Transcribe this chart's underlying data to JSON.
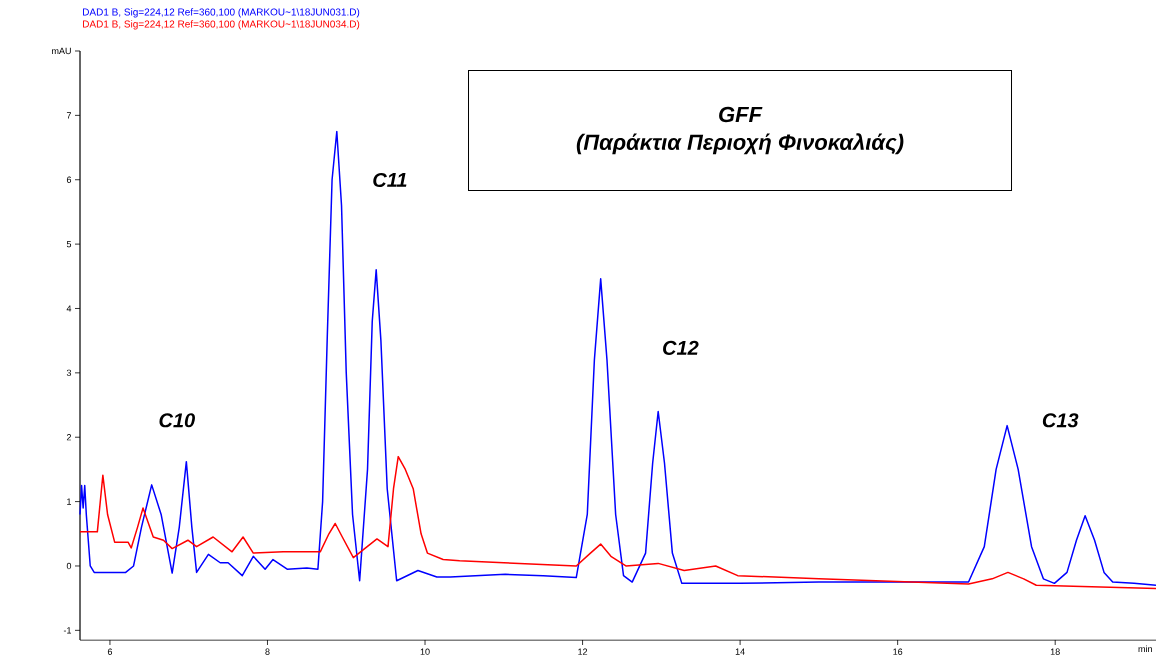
{
  "chart_data": {
    "type": "line",
    "title": "GFF",
    "subtitle": "(Παράκτια Περιοχή Φινοκαλιάς)",
    "xlabel": "min",
    "legend": "top left",
    "xlim": [
      5.62,
      19.28
    ],
    "ylim": [
      -1.15,
      8
    ],
    "xticks": [
      6,
      8,
      10,
      12,
      14,
      16,
      18
    ],
    "yticks": [
      -1,
      0,
      1,
      2,
      3,
      4,
      5,
      6,
      7,
      {
        "value": 8,
        "label": "mAU"
      }
    ],
    "annotations": [
      "C10",
      "C11",
      "C12",
      "C13"
    ],
    "series": [
      {
        "name": "DAD1 B, Sig=224,12 Ref=360,100 (MARKOU~1\\18JUN031.D)",
        "color": "#0000ff",
        "x": [
          5.62,
          5.64,
          5.66,
          5.68,
          5.7,
          5.75,
          5.8,
          6.0,
          6.2,
          6.3,
          6.4,
          6.53,
          6.65,
          6.79,
          6.88,
          6.97,
          7.04,
          7.1,
          7.25,
          7.4,
          7.5,
          7.68,
          7.82,
          7.97,
          8.07,
          8.25,
          8.5,
          8.64,
          8.7,
          8.76,
          8.82,
          8.88,
          8.94,
          9.0,
          9.08,
          9.17,
          9.27,
          9.33,
          9.38,
          9.44,
          9.52,
          9.64,
          9.91,
          10.15,
          10.32,
          11.02,
          11.5,
          11.92,
          12.06,
          12.15,
          12.23,
          12.31,
          12.42,
          12.52,
          12.63,
          12.8,
          12.89,
          12.96,
          13.04,
          13.14,
          13.26,
          14.0,
          15.0,
          16.0,
          16.9,
          17.1,
          17.25,
          17.39,
          17.53,
          17.7,
          17.85,
          17.99,
          18.15,
          18.27,
          18.38,
          18.5,
          18.62,
          18.73,
          19.0,
          19.28
        ],
        "values": [
          0.8,
          1.25,
          0.9,
          1.25,
          0.8,
          0.0,
          -0.1,
          -0.1,
          -0.1,
          0.0,
          0.6,
          1.26,
          0.8,
          -0.11,
          0.6,
          1.62,
          0.6,
          -0.1,
          0.18,
          0.05,
          0.05,
          -0.15,
          0.15,
          -0.05,
          0.1,
          -0.05,
          -0.03,
          -0.05,
          1.0,
          3.6,
          6.0,
          6.75,
          5.6,
          3.0,
          0.8,
          -0.23,
          1.5,
          3.8,
          4.6,
          3.5,
          1.2,
          -0.23,
          -0.07,
          -0.17,
          -0.17,
          -0.13,
          -0.15,
          -0.18,
          0.8,
          3.2,
          4.46,
          3.2,
          0.8,
          -0.15,
          -0.25,
          0.2,
          1.6,
          2.4,
          1.6,
          0.2,
          -0.27,
          -0.27,
          -0.25,
          -0.25,
          -0.25,
          0.3,
          1.5,
          2.18,
          1.5,
          0.3,
          -0.2,
          -0.27,
          -0.1,
          0.4,
          0.78,
          0.4,
          -0.1,
          -0.25,
          -0.27,
          -0.3
        ]
      },
      {
        "name": "DAD1 B, Sig=224,12 Ref=360,100 (MARKOU~1\\18JUN034.D)",
        "color": "#ff0000",
        "x": [
          5.62,
          5.84,
          5.91,
          5.97,
          6.06,
          6.23,
          6.27,
          6.35,
          6.42,
          6.55,
          6.68,
          6.79,
          6.99,
          7.1,
          7.31,
          7.55,
          7.69,
          7.82,
          8.2,
          8.67,
          8.78,
          8.86,
          8.95,
          9.09,
          9.39,
          9.53,
          9.6,
          9.66,
          9.75,
          9.85,
          9.95,
          10.03,
          10.23,
          10.44,
          11.0,
          11.92,
          12.1,
          12.23,
          12.36,
          12.55,
          12.96,
          13.29,
          13.69,
          13.97,
          15.0,
          16.9,
          17.2,
          17.4,
          17.6,
          17.76,
          19.28
        ],
        "values": [
          0.53,
          0.53,
          1.41,
          0.8,
          0.37,
          0.37,
          0.28,
          0.6,
          0.9,
          0.45,
          0.4,
          0.27,
          0.4,
          0.3,
          0.45,
          0.22,
          0.45,
          0.2,
          0.22,
          0.22,
          0.5,
          0.66,
          0.45,
          0.13,
          0.42,
          0.3,
          1.2,
          1.7,
          1.5,
          1.2,
          0.5,
          0.2,
          0.1,
          0.08,
          0.05,
          0.0,
          0.2,
          0.34,
          0.15,
          0.0,
          0.04,
          -0.07,
          0.0,
          -0.15,
          -0.2,
          -0.28,
          -0.2,
          -0.1,
          -0.2,
          -0.3,
          -0.35
        ]
      }
    ]
  }
}
